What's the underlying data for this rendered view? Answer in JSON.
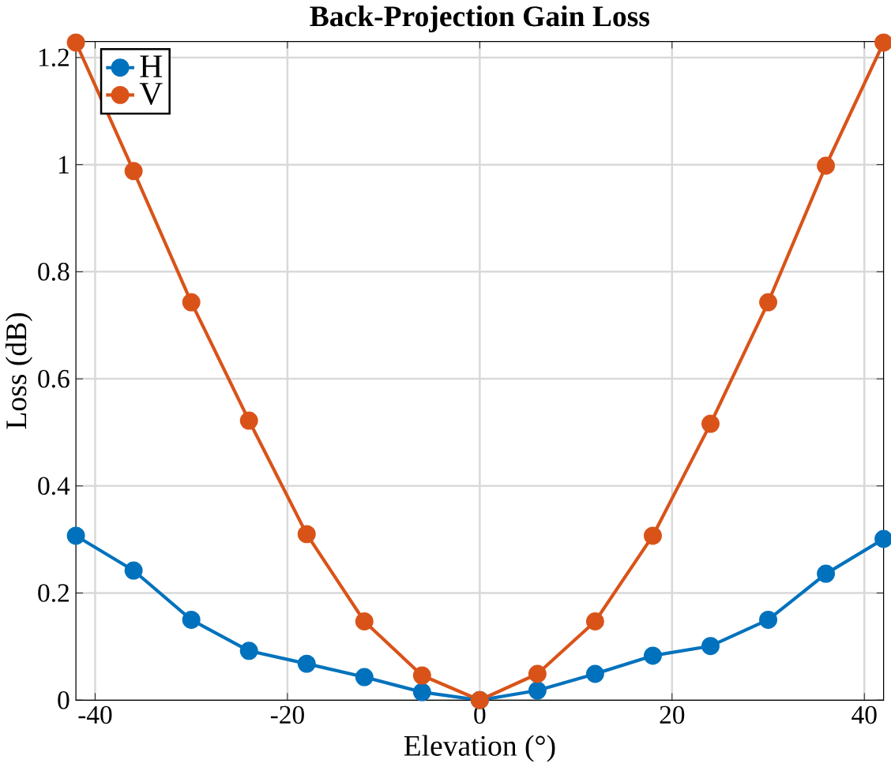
{
  "chart_data": {
    "type": "line",
    "title": "Back-Projection Gain Loss",
    "xlabel": "Elevation (°)",
    "ylabel": "Loss (dB)",
    "x": [
      -42,
      -36,
      -30,
      -24,
      -18,
      -12,
      -6,
      0,
      6,
      12,
      18,
      24,
      30,
      36,
      42
    ],
    "series": [
      {
        "name": "H",
        "color": "#0072bd",
        "values": [
          0.307,
          0.242,
          0.15,
          0.092,
          0.068,
          0.043,
          0.015,
          0,
          0.018,
          0.049,
          0.083,
          0.101,
          0.15,
          0.236,
          0.301
        ]
      },
      {
        "name": "V",
        "color": "#d95319",
        "values": [
          1.228,
          0.988,
          0.743,
          0.522,
          0.31,
          0.147,
          0.046,
          0,
          0.049,
          0.147,
          0.307,
          0.516,
          0.743,
          0.998,
          1.228
        ]
      }
    ],
    "xlim": [
      -42,
      42
    ],
    "ylim": [
      0,
      1.23
    ],
    "xticks": [
      -40,
      -20,
      0,
      20,
      40
    ],
    "yticks": [
      0,
      0.2,
      0.4,
      0.6,
      0.8,
      1,
      1.2
    ],
    "grid": true,
    "legend": "top left",
    "marker": "circle",
    "line_style": "solid"
  }
}
